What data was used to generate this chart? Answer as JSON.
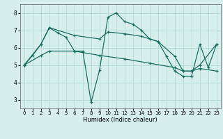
{
  "xlabel": "Humidex (Indice chaleur)",
  "background_color": "#d6efec",
  "grid_color": "#b8ddd8",
  "line_color": "#1a6e64",
  "xlim": [
    -0.5,
    23.5
  ],
  "ylim": [
    2.5,
    8.5
  ],
  "yticks": [
    3,
    4,
    5,
    6,
    7,
    8
  ],
  "xticks": [
    0,
    1,
    2,
    3,
    4,
    5,
    6,
    7,
    8,
    9,
    10,
    11,
    12,
    13,
    14,
    15,
    16,
    17,
    18,
    19,
    20,
    21,
    22,
    23
  ],
  "line1_x": [
    0,
    1,
    2,
    3,
    4,
    5,
    6,
    7,
    8,
    9,
    10,
    11,
    12,
    13,
    14,
    15,
    16,
    17,
    18,
    19,
    20,
    21,
    22,
    23
  ],
  "line1_y": [
    5.0,
    5.55,
    6.2,
    7.15,
    6.85,
    6.6,
    5.8,
    5.8,
    2.85,
    4.7,
    7.75,
    8.0,
    7.5,
    7.35,
    7.0,
    6.5,
    6.35,
    5.5,
    4.65,
    4.35,
    4.35,
    6.2,
    4.85,
    6.2
  ],
  "line2_x": [
    0,
    2,
    3,
    6,
    9,
    10,
    12,
    14,
    16,
    18,
    19,
    20,
    21,
    23
  ],
  "line2_y": [
    5.0,
    6.2,
    7.15,
    6.7,
    6.5,
    6.9,
    6.8,
    6.65,
    6.35,
    5.5,
    4.65,
    4.65,
    5.0,
    6.2
  ],
  "line3_x": [
    0,
    2,
    3,
    6,
    9,
    12,
    15,
    18,
    19,
    20,
    21,
    23
  ],
  "line3_y": [
    5.0,
    5.55,
    5.8,
    5.8,
    5.55,
    5.35,
    5.1,
    4.85,
    4.65,
    4.65,
    4.8,
    4.65
  ]
}
